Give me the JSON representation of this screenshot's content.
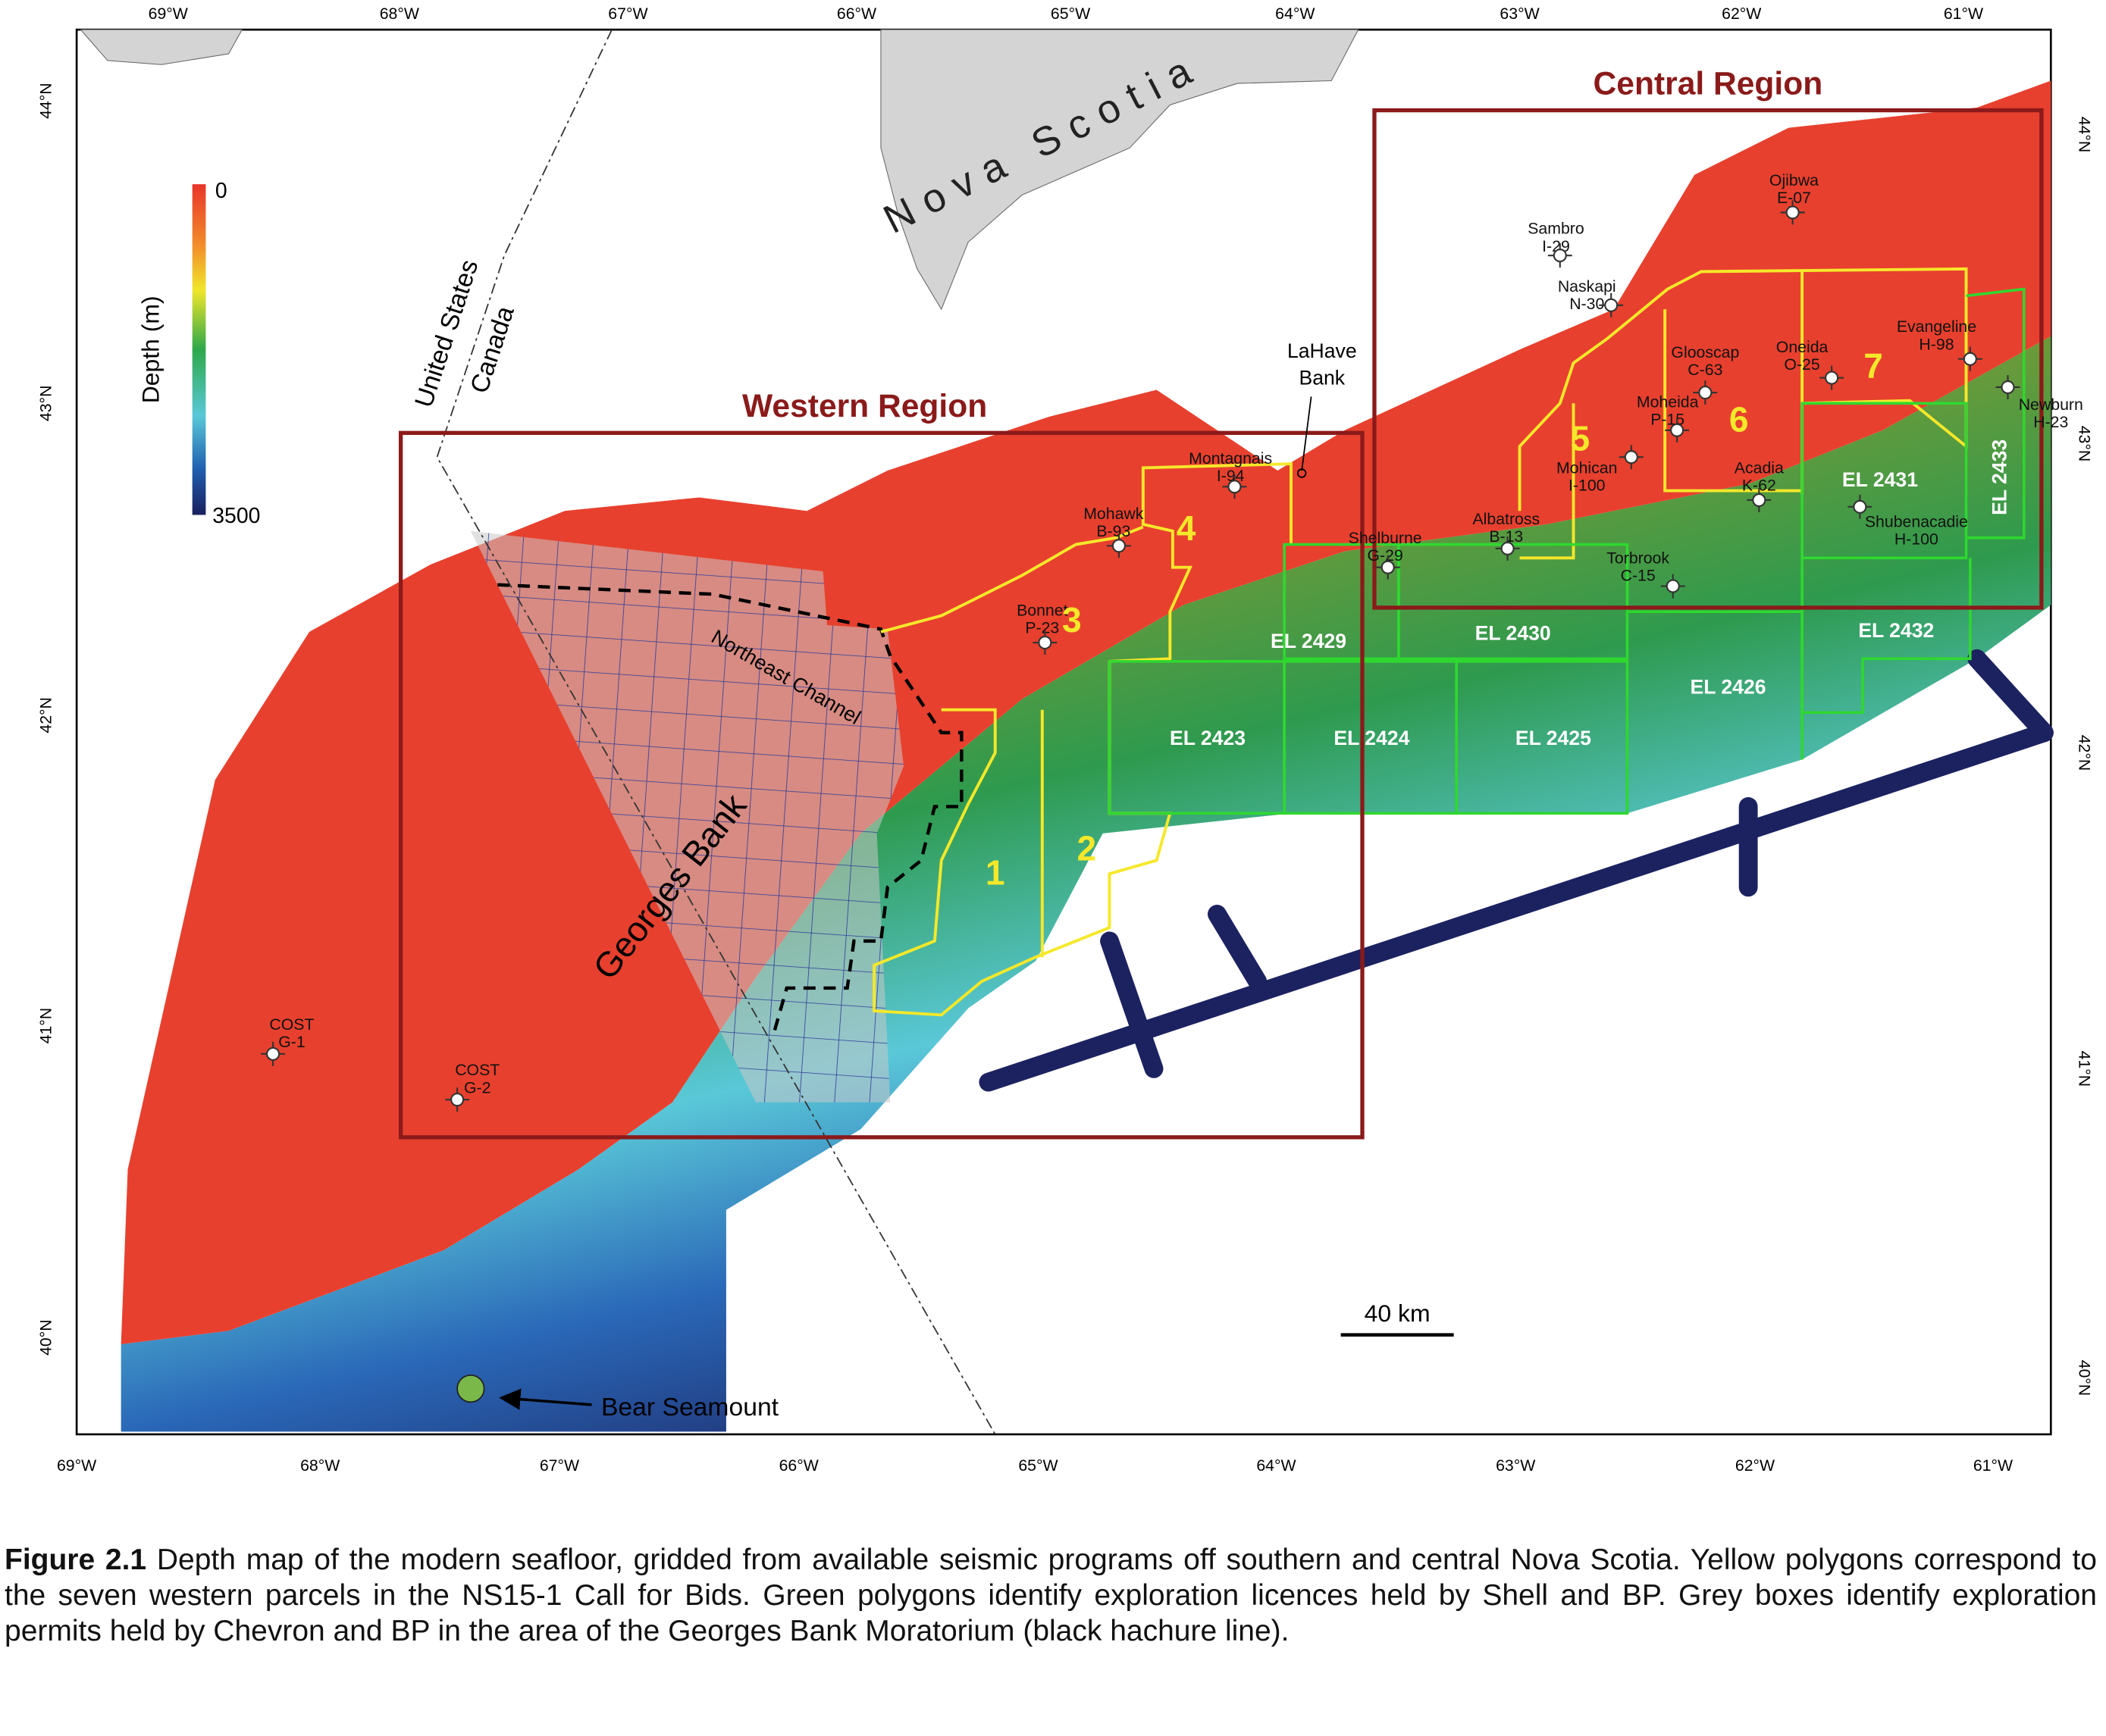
{
  "map": {
    "top_longitudes": [
      "69°W",
      "68°W",
      "67°W",
      "66°W",
      "65°W",
      "64°W",
      "63°W",
      "62°W",
      "61°W"
    ],
    "bottom_longitudes": [
      "69°W",
      "68°W",
      "67°W",
      "66°W",
      "65°W",
      "64°W",
      "63°W",
      "62°W",
      "61°W"
    ],
    "left_latitudes": [
      "44°N",
      "43°N",
      "42°N",
      "41°N",
      "40°N"
    ],
    "right_latitudes": [
      "44°N",
      "43°N",
      "42°N",
      "41°N",
      "40°N"
    ]
  },
  "legend": {
    "title": "Depth (m)",
    "range": [
      0,
      3500
    ]
  },
  "labels": {
    "nova_scotia": "Nova Scotia",
    "united_states": "United States",
    "canada": "Canada",
    "western_region": "Western Region",
    "central_region": "Central Region",
    "lahave_line1": "LaHave",
    "lahave_line2": "Bank",
    "northeast_channel": "Northeast Channel",
    "georges_bank": "Georges Bank",
    "scale": "40 km",
    "bear_seamount": "Bear Seamount"
  },
  "wells": [
    {
      "name": "Montagnais",
      "id": "I-94"
    },
    {
      "name": "Mohawk",
      "id": "B-93"
    },
    {
      "name": "Bonnet",
      "id": "P-23"
    },
    {
      "name": "Shelburne",
      "id": "G-29"
    },
    {
      "name": "Albatross",
      "id": "B-13"
    },
    {
      "name": "Sambro",
      "id": "I-29"
    },
    {
      "name": "Naskapi",
      "id": "N-30"
    },
    {
      "name": "Ojibwa",
      "id": "E-07"
    },
    {
      "name": "Glooscap",
      "id": "C-63"
    },
    {
      "name": "Moheida",
      "id": "P-15"
    },
    {
      "name": "Oneida",
      "id": "O-25"
    },
    {
      "name": "Evangeline",
      "id": "H-98"
    },
    {
      "name": "Mohican",
      "id": "I-100"
    },
    {
      "name": "Acadia",
      "id": "K-62"
    },
    {
      "name": "Torbrook",
      "id": "C-15"
    },
    {
      "name": "Shubenacadie",
      "id": "H-100"
    },
    {
      "name": "Newburn",
      "id": "H-23"
    },
    {
      "name": "COST",
      "id": "G-1"
    },
    {
      "name": "COST",
      "id": "G-2"
    }
  ],
  "parcels": [
    "1",
    "2",
    "3",
    "4",
    "5",
    "6",
    "7"
  ],
  "licences": [
    "EL 2429",
    "EL 2430",
    "EL 2423",
    "EL 2424",
    "EL 2425",
    "EL 2426",
    "EL 2431",
    "EL 2432",
    "EL 2433"
  ],
  "caption": {
    "label": "Figure 2.1",
    "text": "Depth map of the modern seafloor, gridded from available seismic programs off southern and central Nova Scotia. Yellow polygons correspond to the seven western parcels in the NS15-1 Call for Bids.  Green polygons identify exploration licences held by Shell and BP.  Grey boxes identify exploration permits held by Chevron and BP in the area of the Georges Bank Moratorium (black hachure line)."
  }
}
